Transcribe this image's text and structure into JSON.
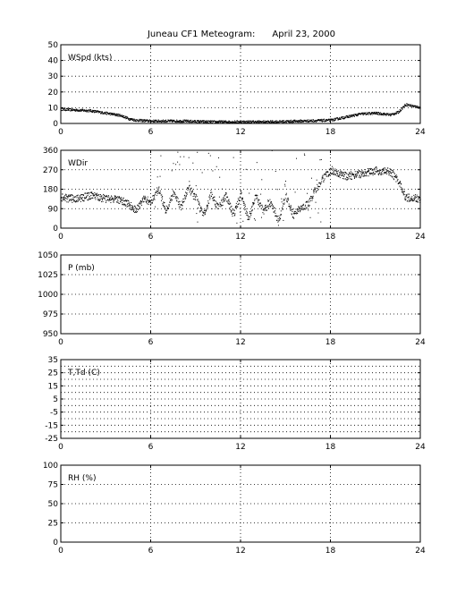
{
  "title": "Juneau CF1 Meteogram:      April 23, 2000",
  "chart_data": [
    {
      "type": "scatter",
      "panel_label": "WSpd (kts)",
      "xlim": [
        0,
        24
      ],
      "ylim": [
        0,
        50
      ],
      "xticks": [
        0,
        6,
        12,
        18,
        24
      ],
      "yticks": [
        0,
        10,
        20,
        30,
        40,
        50
      ],
      "grid": true,
      "anchors": [
        [
          0,
          9
        ],
        [
          1,
          8.5
        ],
        [
          2,
          8
        ],
        [
          3,
          6.5
        ],
        [
          4,
          5
        ],
        [
          4.5,
          3
        ],
        [
          5,
          2
        ],
        [
          6,
          1.5
        ],
        [
          8,
          1.5
        ],
        [
          10,
          1
        ],
        [
          12,
          1
        ],
        [
          14,
          1
        ],
        [
          16,
          1.5
        ],
        [
          18,
          2
        ],
        [
          19,
          4
        ],
        [
          20,
          6
        ],
        [
          21,
          6.5
        ],
        [
          22,
          5.5
        ],
        [
          22.5,
          7
        ],
        [
          23,
          12
        ],
        [
          23.5,
          11
        ],
        [
          24,
          10
        ]
      ]
    },
    {
      "type": "scatter",
      "panel_label": "WDir",
      "xlim": [
        0,
        24
      ],
      "ylim": [
        0,
        360
      ],
      "xticks": [
        0,
        6,
        12,
        18,
        24
      ],
      "yticks": [
        0,
        90,
        180,
        270,
        360
      ],
      "grid": true,
      "anchors": [
        [
          0,
          140
        ],
        [
          1,
          135
        ],
        [
          2,
          150
        ],
        [
          3,
          135
        ],
        [
          4,
          130
        ],
        [
          4.5,
          110
        ],
        [
          5,
          80
        ],
        [
          5.5,
          140
        ],
        [
          6,
          120
        ],
        [
          6.5,
          180
        ],
        [
          7,
          80
        ],
        [
          7.5,
          160
        ],
        [
          8,
          100
        ],
        [
          8.5,
          190
        ],
        [
          9,
          140
        ],
        [
          9.5,
          60
        ],
        [
          10,
          160
        ],
        [
          10.5,
          90
        ],
        [
          11,
          150
        ],
        [
          11.5,
          60
        ],
        [
          12,
          160
        ],
        [
          12.5,
          40
        ],
        [
          13,
          150
        ],
        [
          13.5,
          80
        ],
        [
          14,
          120
        ],
        [
          14.5,
          30
        ],
        [
          15,
          150
        ],
        [
          15.5,
          60
        ],
        [
          16,
          90
        ],
        [
          16.5,
          110
        ],
        [
          17,
          180
        ],
        [
          17.5,
          230
        ],
        [
          18,
          270
        ],
        [
          18.5,
          250
        ],
        [
          19,
          240
        ],
        [
          20,
          250
        ],
        [
          21,
          265
        ],
        [
          22,
          260
        ],
        [
          22.5,
          220
        ],
        [
          23,
          140
        ],
        [
          24,
          135
        ]
      ]
    },
    {
      "type": "scatter",
      "panel_label": "P (mb)",
      "xlim": [
        0,
        24
      ],
      "ylim": [
        950,
        1050
      ],
      "xticks": [
        0,
        6,
        12,
        18,
        24
      ],
      "yticks": [
        950,
        975,
        1000,
        1025,
        1050
      ],
      "grid": true
    },
    {
      "type": "scatter",
      "panel_label": "T,Td (C)",
      "xlim": [
        0,
        24
      ],
      "ylim": [
        -25,
        35
      ],
      "xticks": [
        0,
        6,
        12,
        18,
        24
      ],
      "yticks": [
        -25,
        -15,
        -5,
        5,
        15,
        25,
        35
      ],
      "yticks_minor": [
        -20,
        -10,
        0,
        10,
        20,
        30
      ],
      "grid": true
    },
    {
      "type": "scatter",
      "panel_label": "RH (%)",
      "xlim": [
        0,
        24
      ],
      "ylim": [
        0,
        100
      ],
      "xticks": [
        0,
        6,
        12,
        18,
        24
      ],
      "yticks": [
        0,
        25,
        50,
        75,
        100
      ],
      "grid": true
    }
  ]
}
